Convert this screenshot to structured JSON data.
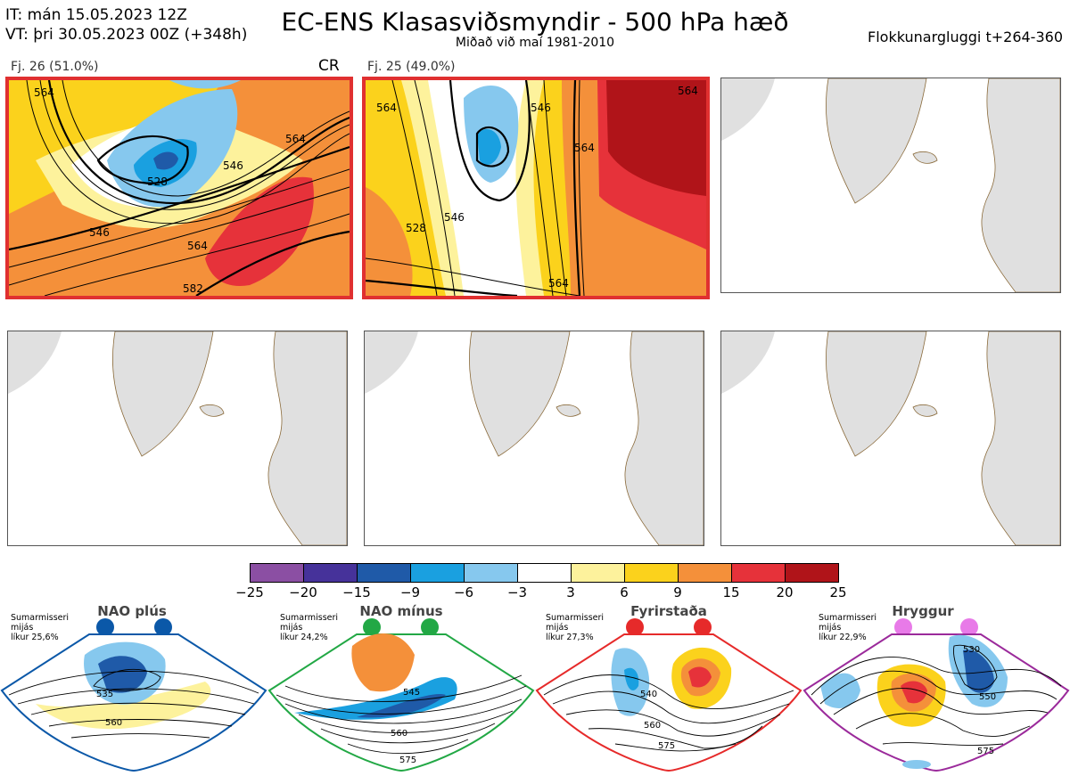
{
  "header": {
    "it_line": "IT: mán 15.05.2023 12Z",
    "vt_line": "VT: þri 30.05.2023 00Z  (+348h)",
    "title": "EC-ENS Klasasviðsmyndir - 500 hPa hæð",
    "subtitle": "Miðað við maí 1981-2010",
    "window": "Flokkunargluggi t+264-360"
  },
  "clusters": [
    {
      "label": "Fj. 26 (51.0%)",
      "tag": "CR",
      "contours": [
        "564",
        "546",
        "528",
        "546",
        "564",
        "564",
        "582"
      ]
    },
    {
      "label": "Fj. 25 (49.0%)",
      "tag": "",
      "contours": [
        "564",
        "546",
        "546",
        "564",
        "564",
        "564",
        "528"
      ]
    }
  ],
  "colorbar": {
    "colors": [
      "#8b4fa3",
      "#46329a",
      "#1f5aa8",
      "#1aa0e0",
      "#86c8ee",
      "#ffffff",
      "#fdf29c",
      "#fbd21c",
      "#f4903a",
      "#e6323a",
      "#b01419"
    ],
    "ticks": [
      "−25",
      "−20",
      "−15",
      "−9",
      "−6",
      "−3",
      "3",
      "6",
      "9",
      "15",
      "20",
      "25"
    ]
  },
  "regimes": [
    {
      "name": "NAO plús",
      "season": "Sumarmisseri",
      "wording": "mijás",
      "likelihood": "líkur 25,6%",
      "color": "#0b58a8",
      "contours": [
        "535",
        "560"
      ]
    },
    {
      "name": "NAO mínus",
      "season": "Sumarmisseri",
      "wording": "mijás",
      "likelihood": "líkur 24,2%",
      "color": "#22a845",
      "contours": [
        "545",
        "560",
        "575"
      ]
    },
    {
      "name": "Fyrirstaða",
      "season": "Sumarmisseri",
      "wording": "mijás",
      "likelihood": "líkur 27,3%",
      "color": "#e62a2a",
      "contours": [
        "540",
        "560",
        "575"
      ]
    },
    {
      "name": "Hryggur",
      "season": "Sumarmisseri",
      "wording": "mijás",
      "likelihood": "líkur 22,9%",
      "color": "#e87ae8",
      "contours": [
        "530",
        "550",
        "575"
      ]
    }
  ]
}
